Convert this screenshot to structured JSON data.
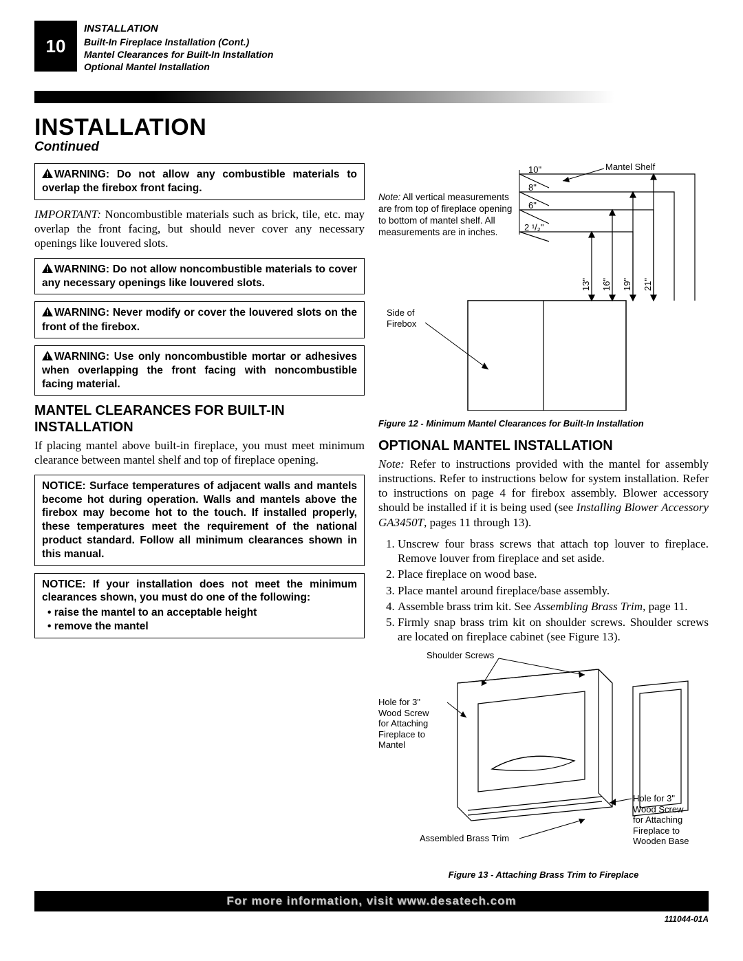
{
  "page_number": "10",
  "header": {
    "line1": "INSTALLATION",
    "line2": "Built-In Fireplace Installation (Cont.)",
    "line3": "Mantel Clearances for Built-In Installation",
    "line4": "Optional Mantel Installation"
  },
  "title": "INSTALLATION",
  "continued": "Continued",
  "left": {
    "warn1": "WARNING: Do not allow any combustible materials to overlap the firebox front facing.",
    "important_lead": "IMPORTANT:",
    "important_body": " Noncombustible materials such as brick, tile, etc. may overlap the front facing, but should never cover any necessary openings like louvered slots.",
    "warn2": "WARNING: Do not allow noncombustible materials to cover any necessary openings like louvered slots.",
    "warn3": "WARNING: Never modify or cover the louvered slots on the front of the firebox.",
    "warn4": "WARNING: Use only noncombustible mortar or adhesives when overlapping the front facing with noncombustible facing material.",
    "sec1_heading": "MANTEL CLEARANCES FOR BUILT-IN INSTALLATION",
    "sec1_body": "If placing mantel above built-in fireplace, you must meet minimum clearance between mantel shelf and top of fireplace opening.",
    "notice1": "NOTICE: Surface temperatures of adjacent walls and mantels become hot during operation. Walls and mantels above the firebox may become hot to the touch. If installed properly, these temperatures meet the requirement of the national product standard. Follow all minimum clearances shown in this manual.",
    "notice2_head": "NOTICE: If your installation does not meet the minimum clearances shown, you must do one of the following:",
    "notice2_li1": "raise the mantel to an acceptable height",
    "notice2_li2": "remove the mantel"
  },
  "fig12": {
    "mantel_shelf": "Mantel Shelf",
    "note_lead": "Note:",
    "note_body": " All vertical measurements are from top of fireplace opening to bottom of mantel shelf. All measurements are in inches.",
    "side_of": "Side of",
    "firebox": "Firebox",
    "h10": "10\"",
    "h8": "8\"",
    "h6": "6\"",
    "h2half": "2 ¹/₂\"",
    "v13": "13\"",
    "v16": "16\"",
    "v19": "19\"",
    "v21": "21\"",
    "caption": "Figure 12 - Minimum Mantel Clearances for Built-In Installation"
  },
  "right": {
    "sec_heading": "OPTIONAL MANTEL INSTALLATION",
    "note_lead": "Note:",
    "note_body": " Refer to instructions provided with the mantel for assembly instructions. Refer to instructions below for system installation. Refer to instructions on page 4 for firebox assembly. Blower accessory should be installed if it is being used (see ",
    "note_em": "Installing Blower Accessory GA3450T",
    "note_tail": ", pages 11 through 13).",
    "steps": [
      "Unscrew four brass screws that attach top louver to fireplace. Remove louver from fireplace and set aside.",
      "Place fireplace on wood base.",
      "Place mantel around fireplace/base assembly.",
      "Assemble brass trim kit. See <i>Assembling Brass Trim</i>, page 11.",
      "Firmly snap brass trim kit on shoulder screws. Shoulder screws are located on fireplace cabinet (see Figure 13)."
    ]
  },
  "fig13": {
    "shoulder": "Shoulder Screws",
    "hole_mantel_1": "Hole for 3\"",
    "hole_mantel_2": "Wood Screw",
    "hole_mantel_3": "for Attaching",
    "hole_mantel_4": "Fireplace to",
    "hole_mantel_5": "Mantel",
    "assembled": "Assembled Brass Trim",
    "hole_base_1": "Hole for 3\"",
    "hole_base_2": "Wood Screw",
    "hole_base_3": "for Attaching",
    "hole_base_4": "Fireplace to",
    "hole_base_5": "Wooden Base",
    "caption": "Figure 13 - Attaching Brass Trim to Fireplace"
  },
  "footer": "For more information, visit www.desatech.com",
  "doc_id": "111044-01A",
  "colors": {
    "black": "#000000",
    "white": "#ffffff",
    "footer_text": "#cccccc"
  }
}
